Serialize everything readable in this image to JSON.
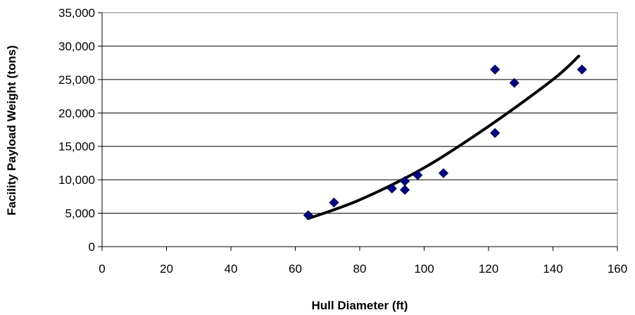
{
  "chart_data": {
    "type": "scatter",
    "xlabel": "Hull Diameter (ft)",
    "ylabel": "Facility Payload Weight (tons)",
    "xlim": [
      0,
      160
    ],
    "ylim": [
      0,
      35000
    ],
    "x_ticks": [
      0,
      20,
      40,
      60,
      80,
      100,
      120,
      140,
      160
    ],
    "y_ticks": [
      0,
      5000,
      10000,
      15000,
      20000,
      25000,
      30000,
      35000
    ],
    "x_tick_labels": [
      "0",
      "20",
      "40",
      "60",
      "80",
      "100",
      "120",
      "140",
      "160"
    ],
    "y_tick_labels": [
      "0",
      "5,000",
      "10,000",
      "15,000",
      "20,000",
      "25,000",
      "30,000",
      "35,000"
    ],
    "grid": "horizontal major gridlines",
    "legend": "none",
    "series": [
      {
        "marker": "diamond",
        "color": "#000080",
        "points": [
          {
            "x": 64,
            "y": 4700
          },
          {
            "x": 72,
            "y": 6600
          },
          {
            "x": 90,
            "y": 8700
          },
          {
            "x": 94,
            "y": 8500
          },
          {
            "x": 94,
            "y": 9800
          },
          {
            "x": 98,
            "y": 10700
          },
          {
            "x": 106,
            "y": 11000
          },
          {
            "x": 122,
            "y": 26500
          },
          {
            "x": 122,
            "y": 17000
          },
          {
            "x": 128,
            "y": 24500
          },
          {
            "x": 149,
            "y": 26500
          }
        ]
      }
    ],
    "trendline": {
      "type": "exponential",
      "color": "#000000",
      "x": [
        64,
        80,
        100,
        120,
        140,
        148
      ],
      "y": [
        4200,
        7000,
        11800,
        18000,
        25000,
        28500
      ]
    }
  }
}
